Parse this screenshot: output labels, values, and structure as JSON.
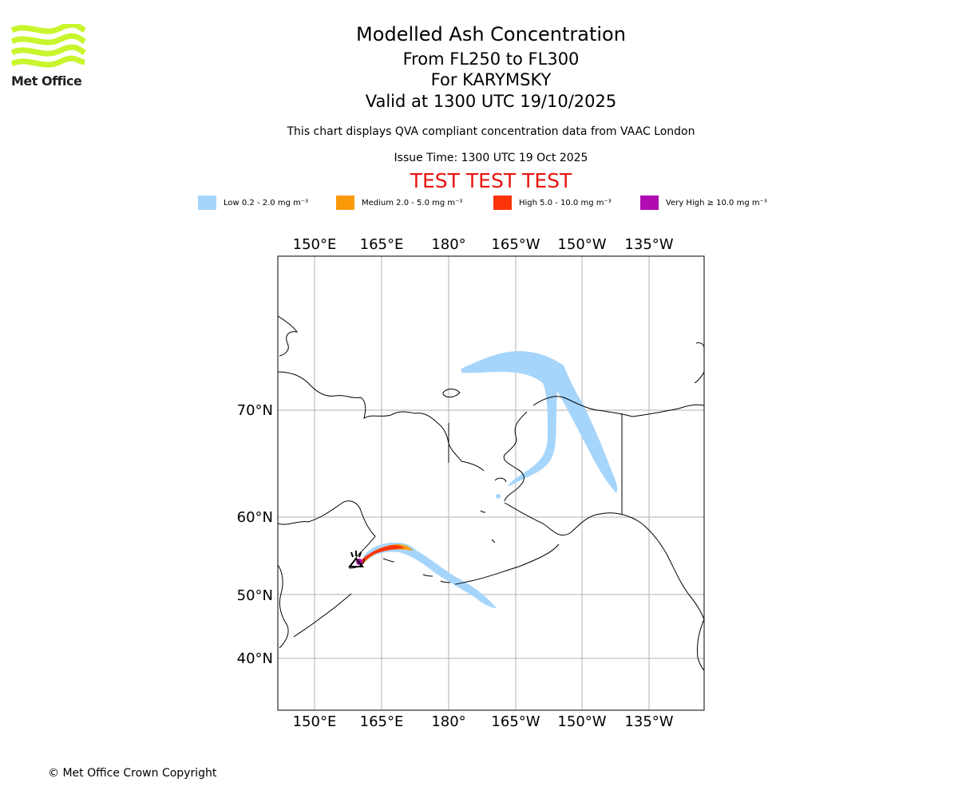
{
  "logo": {
    "text": "Met Office",
    "color": "#c8f52c"
  },
  "title": {
    "line1": "Modelled Ash Concentration",
    "line2": "From FL250 to FL300",
    "line3": "For KARYMSKY",
    "line4": "Valid at 1300 UTC 19/10/2025"
  },
  "subtitle": "This chart displays QVA compliant concentration data from VAAC London",
  "issue_time": "Issue Time: 1300 UTC 19 Oct 2025",
  "test_banner": "TEST TEST TEST",
  "legend": [
    {
      "label": "Low 0.2 - 2.0 mg m⁻³",
      "color": "#a6d5fb"
    },
    {
      "label": "Medium 2.0 - 5.0 mg m⁻³",
      "color": "#fb9a09"
    },
    {
      "label": "High 5.0 - 10.0 mg m⁻³",
      "color": "#fb3409"
    },
    {
      "label": "Very High  ≥  10.0 mg m⁻³",
      "color": "#b10cb2"
    }
  ],
  "map": {
    "lon_ticks": [
      "150°E",
      "165°E",
      "180°",
      "165°W",
      "150°W",
      "135°W"
    ],
    "lat_ticks": [
      "70°N",
      "60°N",
      "50°N",
      "40°N"
    ],
    "volcano": "KARYMSKY"
  },
  "copyright": "© Met Office Crown Copyright"
}
